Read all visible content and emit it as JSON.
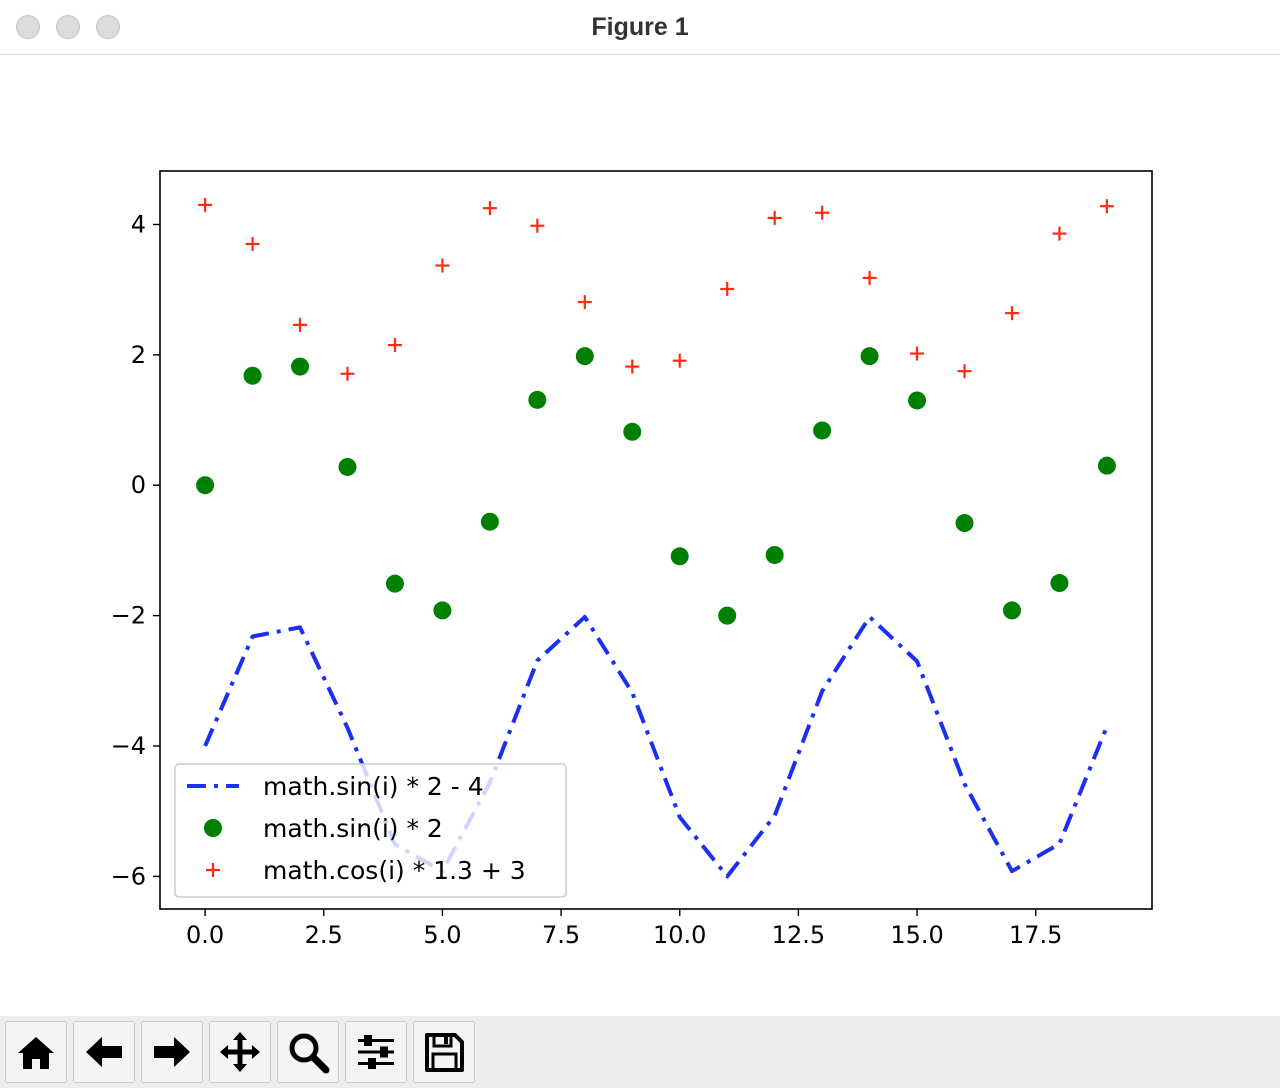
{
  "window": {
    "title": "Figure 1"
  },
  "toolbar": {
    "buttons": [
      {
        "name": "home",
        "icon": "home-icon"
      },
      {
        "name": "back",
        "icon": "arrow-left-icon"
      },
      {
        "name": "forward",
        "icon": "arrow-right-icon"
      },
      {
        "name": "pan",
        "icon": "move-icon"
      },
      {
        "name": "zoom",
        "icon": "magnifier-icon"
      },
      {
        "name": "configure-subplots",
        "icon": "sliders-icon"
      },
      {
        "name": "save",
        "icon": "floppy-disk-icon"
      }
    ]
  },
  "chart_data": {
    "type": "line",
    "title": "",
    "xlabel": "",
    "ylabel": "",
    "xlim": [
      -0.95,
      19.95
    ],
    "ylim": [
      -6.5,
      4.82
    ],
    "xticks": [
      0.0,
      2.5,
      5.0,
      7.5,
      10.0,
      12.5,
      15.0,
      17.5
    ],
    "xtick_labels": [
      "0.0",
      "2.5",
      "5.0",
      "7.5",
      "10.0",
      "12.5",
      "15.0",
      "17.5"
    ],
    "yticks": [
      4,
      2,
      0,
      -2,
      -4,
      -6
    ],
    "ytick_labels": [
      "4",
      "2",
      "0",
      "−2",
      "−4",
      "−6"
    ],
    "grid": false,
    "legend_position": "lower-left",
    "x": [
      0,
      1,
      2,
      3,
      4,
      5,
      6,
      7,
      8,
      9,
      10,
      11,
      12,
      13,
      14,
      15,
      16,
      17,
      18,
      19
    ],
    "series": [
      {
        "name": "math.sin(i) * 2 - 4",
        "style": "dashdot-line",
        "color": "#1a2ff0",
        "values": [
          -4.0,
          -2.32,
          -2.18,
          -3.72,
          -5.51,
          -5.92,
          -4.56,
          -2.69,
          -2.02,
          -3.18,
          -5.09,
          -6.0,
          -5.07,
          -3.16,
          -2.02,
          -2.7,
          -4.58,
          -5.92,
          -5.5,
          -3.7
        ]
      },
      {
        "name": "math.sin(i) * 2",
        "style": "circle-marker",
        "color": "#008000",
        "values": [
          0.0,
          1.68,
          1.82,
          0.28,
          -1.51,
          -1.92,
          -0.56,
          1.31,
          1.98,
          0.82,
          -1.09,
          -2.0,
          -1.07,
          0.84,
          1.98,
          1.3,
          -0.58,
          -1.92,
          -1.5,
          0.3
        ]
      },
      {
        "name": "math.cos(i) * 1.3 + 3",
        "style": "plus-marker",
        "color": "#ff2a12",
        "values": [
          4.3,
          3.7,
          2.46,
          1.71,
          2.15,
          3.37,
          4.25,
          3.98,
          2.81,
          1.82,
          1.91,
          3.01,
          4.1,
          4.18,
          3.18,
          2.02,
          1.75,
          2.64,
          3.86,
          4.28
        ]
      }
    ]
  }
}
